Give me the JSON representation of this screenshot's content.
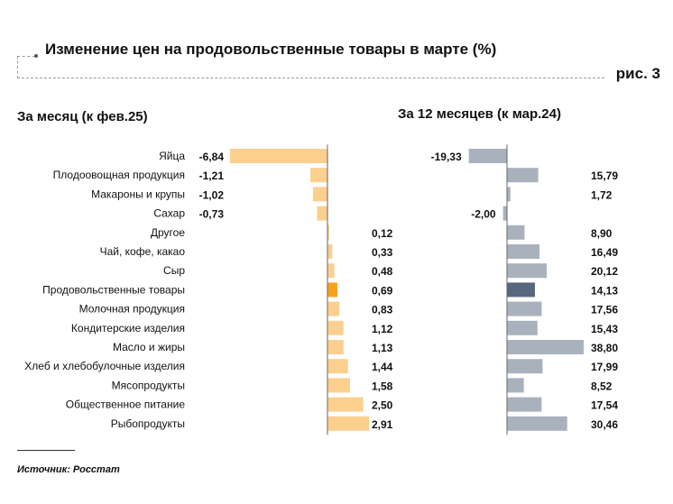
{
  "title": "Изменение цен на продовольственные товары в марте (%)",
  "figure_label": "рис. 3",
  "source": "Источник: Росстат",
  "colors": {
    "month_bar": "#fbd08e",
    "month_highlight": "#f6a21c",
    "year_bar": "#a9b2bc",
    "year_highlight": "#56677e"
  },
  "chart_data": [
    {
      "type": "bar",
      "orientation": "horizontal",
      "title": "За месяц (к фев.25)",
      "categories": [
        "Яйца",
        "Плодоовощная продукция",
        "Макароны и крупы",
        "Сахар",
        "Другое",
        "Чай, кофе, какао",
        "Сыр",
        "Продовольственные товары",
        "Молочная продукция",
        "Кондитерские изделия",
        "Масло и жиры",
        "Хлеб и хлебобулочные изделия",
        "Мясопродукты",
        "Общественное питание",
        "Рыбопродукты"
      ],
      "values": [
        -6.84,
        -1.21,
        -1.02,
        -0.73,
        0.12,
        0.33,
        0.48,
        0.69,
        0.83,
        1.12,
        1.13,
        1.44,
        1.58,
        2.5,
        2.91
      ],
      "labels": [
        "-6,84",
        "-1,21",
        "-1,02",
        "-0,73",
        "0,12",
        "0,33",
        "0,48",
        "0,69",
        "0,83",
        "1,12",
        "1,13",
        "1,44",
        "1,58",
        "2,50",
        "2,91"
      ],
      "highlight": "Продовольственные товары"
    },
    {
      "type": "bar",
      "orientation": "horizontal",
      "title": "За 12 месяцев (к мар.24)",
      "categories": [
        "Яйца",
        "Плодоовощная продукция",
        "Макароны и крупы",
        "Сахар",
        "Другое",
        "Чай, кофе, какао",
        "Сыр",
        "Продовольственные товары",
        "Молочная продукция",
        "Кондитерские изделия",
        "Масло и жиры",
        "Хлеб и хлебобулочные изделия",
        "Мясопродукты",
        "Общественное питание",
        "Рыбопродукты"
      ],
      "values": [
        -19.33,
        15.79,
        1.72,
        -2.0,
        8.9,
        16.49,
        20.12,
        14.13,
        17.56,
        15.43,
        38.8,
        17.99,
        8.52,
        17.54,
        30.46
      ],
      "labels": [
        "-19,33",
        "15,79",
        "1,72",
        "-2,00",
        "8,90",
        "16,49",
        "20,12",
        "14,13",
        "17,56",
        "15,43",
        "38,80",
        "17,99",
        "8,52",
        "17,54",
        "30,46"
      ],
      "highlight": "Продовольственные товары"
    }
  ]
}
